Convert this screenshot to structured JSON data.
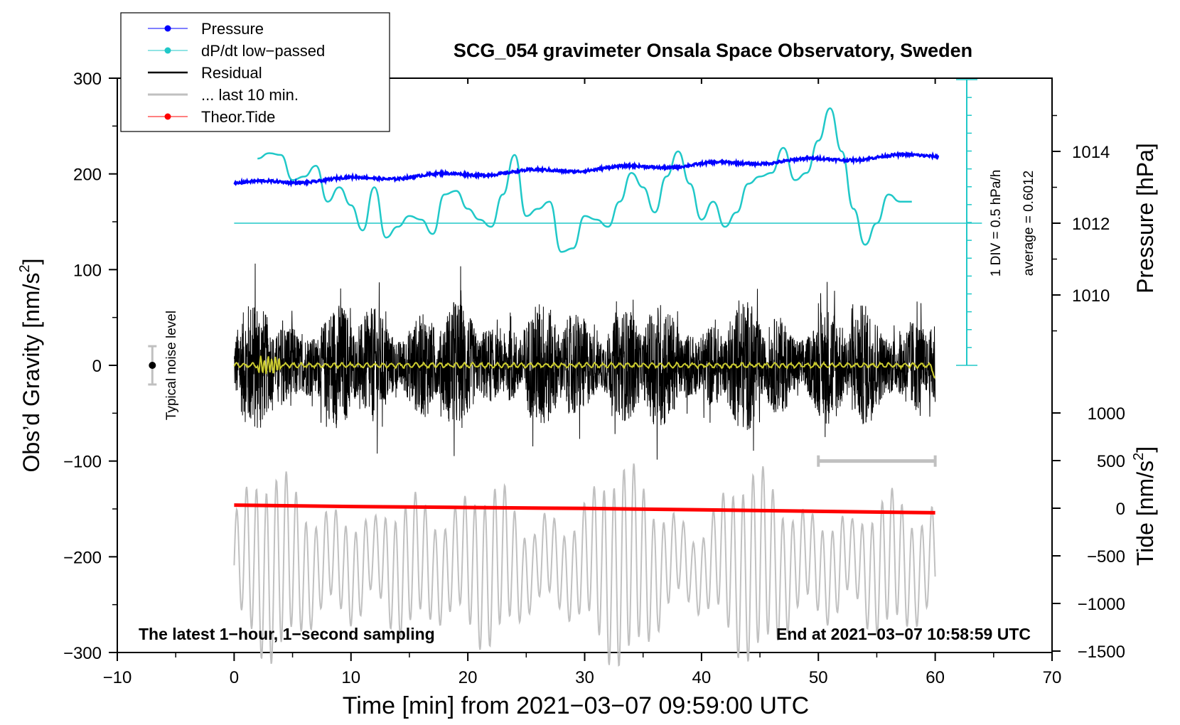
{
  "chart_data": {
    "type": "line",
    "title": "SCG_054 gravimeter Onsala Space Observatory, Sweden",
    "xlabel": "Time [min] from 2021−03−07 09:59:00 UTC",
    "ylabel_left": "Obs’d Gravity [nm/s",
    "ylabel_left_sup": "2",
    "ylabel_left_close": "]",
    "ylabel_right_pressure": "Pressure [hPa]",
    "ylabel_right_tide": "Tide [nm/s",
    "ylabel_right_tide_sup": "2",
    "ylabel_right_tide_close": "]",
    "xlim": [
      -10,
      70
    ],
    "ylim": [
      -300,
      300
    ],
    "x_ticks": [
      -10,
      0,
      10,
      20,
      30,
      40,
      50,
      60,
      70
    ],
    "x_tick_labels": [
      "−10",
      "0",
      "10",
      "20",
      "30",
      "40",
      "50",
      "60",
      "70"
    ],
    "y_ticks": [
      -300,
      -200,
      -100,
      0,
      100,
      200,
      300
    ],
    "y_tick_labels": [
      "−300",
      "−200",
      "−100",
      "0",
      "100",
      "200",
      "300"
    ],
    "pressure_axis": {
      "range": [
        1008,
        1016
      ],
      "ticks": [
        1010,
        1012,
        1014
      ],
      "tick_labels": [
        "1010",
        "1012",
        "1014"
      ]
    },
    "tide_axis": {
      "range": [
        -1500,
        1500
      ],
      "ticks": [
        -1500,
        -1000,
        -500,
        0,
        500,
        1000
      ],
      "tick_labels": [
        "−1500",
        "−1000",
        "−500",
        "0",
        "500",
        "1000"
      ]
    },
    "legend": {
      "placement": "top-left",
      "entries": [
        {
          "label": "Pressure",
          "color": "#0000ff",
          "marker": "dot"
        },
        {
          "label": "dP/dt low−passed",
          "color": "#20c8c8",
          "marker": "dot"
        },
        {
          "label": "Residual",
          "color": "#000000",
          "marker": "none"
        },
        {
          "label": "... last 10 min.",
          "color": "#c0c0c0",
          "marker": "none"
        },
        {
          "label": "Theor.Tide",
          "color": "#ff0000",
          "marker": "dot"
        }
      ]
    },
    "annotations": {
      "bottom_left": "The latest 1−hour, 1−second sampling",
      "bottom_right": "End at 2021−03−07 10:58:59 UTC",
      "noise_label": "Typical noise level",
      "scale_div": "1 DIV = 0.5 hPa/h",
      "scale_avg": "average = 0.6012"
    },
    "series": [
      {
        "name": "Pressure",
        "color": "#0000ff",
        "axis": "pressure",
        "x": [
          0,
          10,
          20,
          30,
          40,
          50,
          60
        ],
        "values": [
          1013.1,
          1013.4,
          1013.5,
          1013.6,
          1013.7,
          1013.8,
          1013.9
        ]
      },
      {
        "name": "dP/dt low−passed",
        "color": "#20c8c8",
        "axis": "pressure",
        "x": [
          2,
          3,
          4,
          5,
          6,
          7,
          8,
          9,
          10,
          11,
          12,
          13,
          14,
          15,
          16,
          17,
          18,
          19,
          20,
          21,
          22,
          23,
          24,
          25,
          26,
          27,
          28,
          29,
          30,
          31,
          32,
          33,
          34,
          35,
          36,
          37,
          38,
          39,
          40,
          41,
          42,
          43,
          44,
          45,
          46,
          47,
          48,
          49,
          50,
          51,
          52,
          53,
          54,
          55,
          56,
          57,
          58
        ],
        "values": [
          1013.8,
          1013.95,
          1013.9,
          1013.2,
          1013.3,
          1013.6,
          1012.6,
          1013.0,
          1012.5,
          1011.8,
          1013.0,
          1011.6,
          1011.9,
          1012.2,
          1012.1,
          1011.7,
          1012.8,
          1012.9,
          1012.4,
          1012.1,
          1011.9,
          1012.8,
          1013.9,
          1012.2,
          1012.4,
          1012.6,
          1011.2,
          1011.3,
          1012.2,
          1012.1,
          1011.9,
          1012.6,
          1013.4,
          1013.0,
          1012.3,
          1013.3,
          1014.0,
          1013.1,
          1012.1,
          1012.6,
          1011.9,
          1012.3,
          1013.1,
          1013.3,
          1013.4,
          1014.1,
          1013.2,
          1013.4,
          1014.3,
          1015.2,
          1014.0,
          1012.4,
          1011.4,
          1012.0,
          1012.8,
          1012.6,
          1012.6
        ]
      },
      {
        "name": "Residual",
        "color": "#000000",
        "axis": "gravity",
        "x": [
          0,
          60
        ],
        "values": [
          0,
          0
        ],
        "envelope_nm_s2": 100
      },
      {
        "name": "Residual low−passed",
        "color": "#cccc30",
        "axis": "gravity",
        "x": [
          0,
          60
        ],
        "values": [
          0,
          0
        ]
      },
      {
        "name": "... last 10 min.",
        "color": "#c0c0c0",
        "axis": "tide",
        "x": [
          0,
          10,
          20,
          30,
          40,
          50,
          60
        ],
        "values": [
          -100,
          -300,
          -900,
          -700,
          -500,
          -800,
          -600
        ],
        "amplitude": 1000
      },
      {
        "name": "Theor.Tide",
        "color": "#ff0000",
        "axis": "gravity",
        "x": [
          0,
          10,
          20,
          30,
          40,
          50,
          60
        ],
        "values": [
          -146,
          -147.5,
          -148.5,
          -149.5,
          -151,
          -152.5,
          -154
        ]
      }
    ],
    "noise_marker": {
      "x": -7,
      "y": 0,
      "error": 20
    },
    "last10_bracket": {
      "x_start": 50,
      "x_end": 60,
      "y": -100
    },
    "dpdt_zero_line": 1012
  }
}
